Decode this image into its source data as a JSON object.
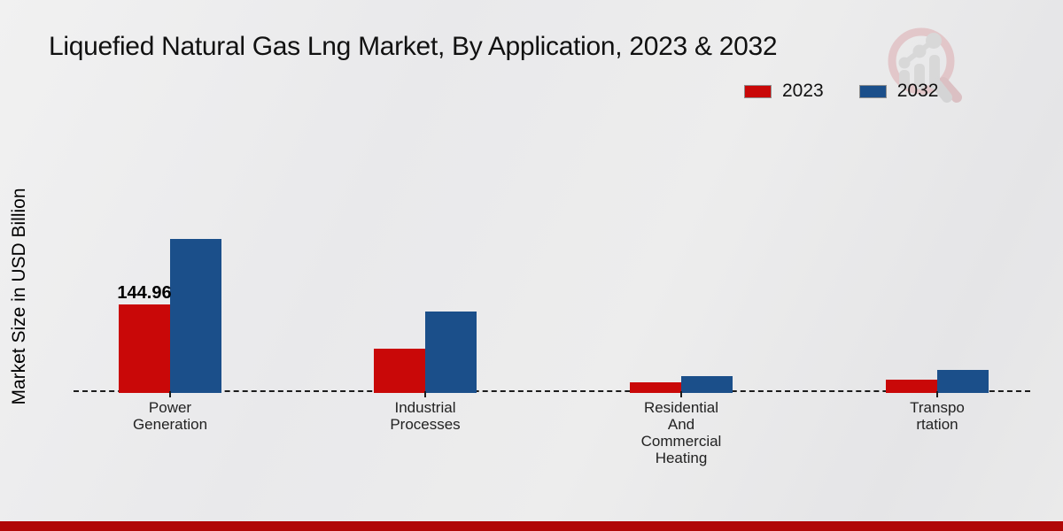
{
  "title": "Liquefied Natural Gas Lng Market, By Application, 2023 & 2032",
  "y_axis_label": "Market Size in USD Billion",
  "legend": {
    "items": [
      {
        "label": "2023",
        "color": "#c90808"
      },
      {
        "label": "2032",
        "color": "#1b4f8a"
      }
    ]
  },
  "chart_data": {
    "type": "bar",
    "title": "Liquefied Natural Gas Lng Market, By Application, 2023 & 2032",
    "xlabel": "",
    "ylabel": "Market Size in USD Billion",
    "categories": [
      "Power Generation",
      "Industrial Processes",
      "Residential And Commercial Heating",
      "Transportation"
    ],
    "tick_labels": [
      "Power\nGeneration",
      "Industrial\nProcesses",
      "Residential\nAnd\nCommercial\nHeating",
      "Transpo\nrtation"
    ],
    "series": [
      {
        "name": "2023",
        "color": "#c90808",
        "values": [
          144.96,
          72.8,
          17.6,
          21.9
        ]
      },
      {
        "name": "2032",
        "color": "#1b4f8a",
        "values": [
          251.6,
          133.4,
          28.1,
          37.8
        ]
      }
    ],
    "annotations": [
      {
        "series_index": 0,
        "category_index": 0,
        "text": "144.96"
      }
    ],
    "ylim": [
      0,
      280
    ],
    "grid": false,
    "legend_position": "top-right",
    "baseline_style": "dashed"
  },
  "watermark": {
    "name": "market-research-magnifier-logo"
  },
  "footer": {
    "accent_color": "#b00707"
  }
}
